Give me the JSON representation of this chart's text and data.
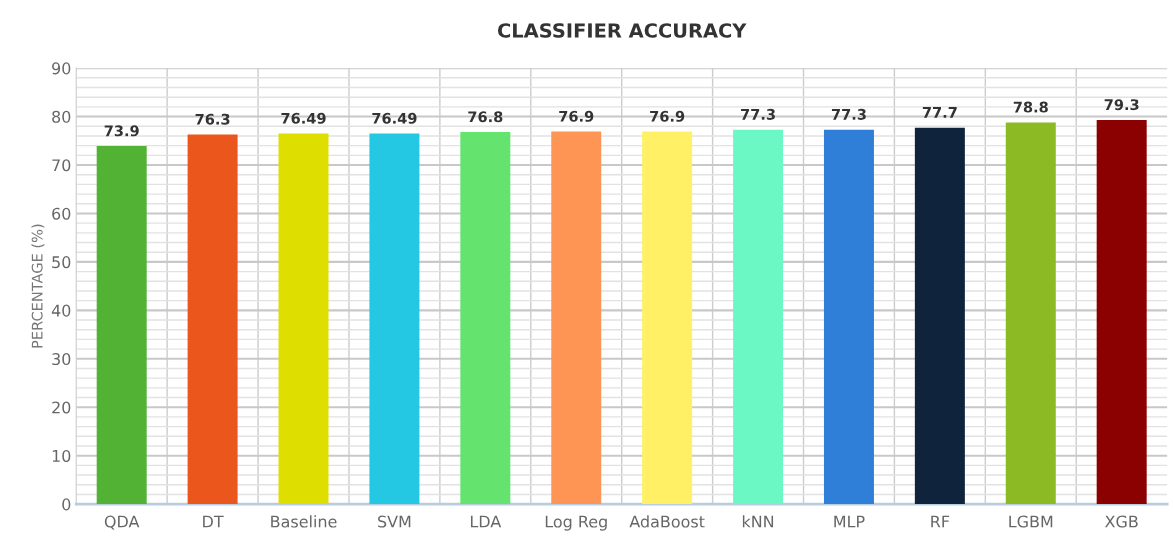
{
  "chart_data": {
    "type": "bar",
    "title": "CLASSIFIER ACCURACY",
    "ylabel": "PERCENTAGE (%)",
    "categories": [
      "QDA",
      "DT",
      "Baseline",
      "SVM",
      "LDA",
      "Log Reg",
      "AdaBoost",
      "kNN",
      "MLP",
      "RF",
      "LGBM",
      "XGB"
    ],
    "values": [
      73.9,
      76.3,
      76.49,
      76.49,
      76.8,
      76.9,
      76.9,
      77.3,
      77.3,
      77.7,
      78.8,
      79.3
    ],
    "colors": [
      "#52b234",
      "#eb561c",
      "#dedf00",
      "#24c8e2",
      "#64e46e",
      "#ff9555",
      "#fff066",
      "#6cf8c4",
      "#2f7fd9",
      "#0f233c",
      "#8cba24",
      "#8b0000"
    ],
    "data_labels": true,
    "ylim": [
      0,
      90
    ],
    "yticks": [
      0,
      10,
      20,
      30,
      40,
      50,
      60,
      70,
      80,
      90
    ],
    "grid": true
  }
}
